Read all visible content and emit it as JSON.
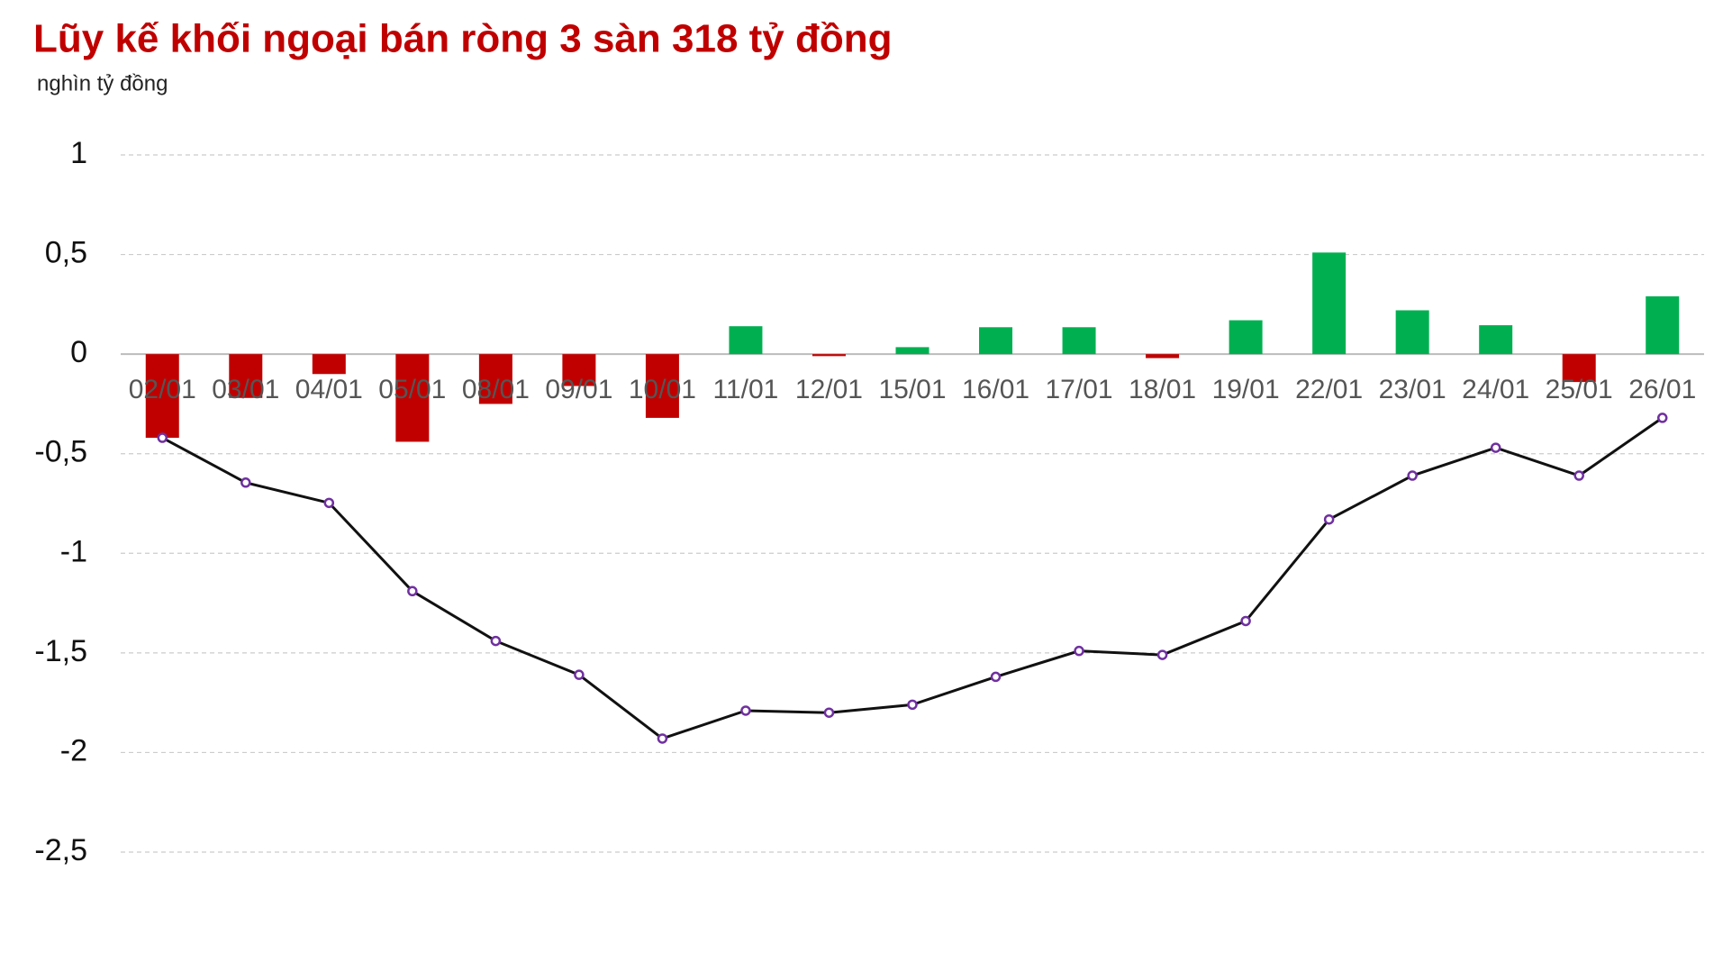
{
  "chart_data": {
    "type": "bar-line",
    "title": "Lũy kế khối ngoại bán ròng 3 sàn 318 tỷ đồng",
    "subtitle": "nghìn tỷ đồng",
    "categories": [
      "02/01",
      "03/01",
      "04/01",
      "05/01",
      "08/01",
      "09/01",
      "10/01",
      "11/01",
      "12/01",
      "15/01",
      "16/01",
      "17/01",
      "18/01",
      "19/01",
      "22/01",
      "23/01",
      "24/01",
      "25/01",
      "26/01"
    ],
    "series": [
      {
        "type": "bar",
        "positive_color": "#00b050",
        "negative_color": "#c00000",
        "values": [
          -0.42,
          -0.22,
          -0.1,
          -0.44,
          -0.25,
          -0.16,
          -0.32,
          0.14,
          -0.01,
          0.035,
          0.135,
          0.135,
          -0.02,
          0.17,
          0.51,
          0.22,
          0.145,
          -0.14,
          0.29
        ]
      },
      {
        "type": "line",
        "color": "#111111",
        "marker_color": "#7030a0",
        "values": [
          -0.42,
          -0.645,
          -0.747,
          -1.19,
          -1.44,
          -1.61,
          -1.93,
          -1.79,
          -1.8,
          -1.76,
          -1.62,
          -1.49,
          -1.51,
          -1.34,
          -0.83,
          -0.61,
          -0.47,
          -0.61,
          -0.32
        ]
      }
    ],
    "ylim": [
      -2.5,
      1
    ],
    "yticks": [
      1,
      {
        "value": 0.5,
        "label": "0,5"
      },
      0,
      {
        "value": -0.5,
        "label": "-0,5"
      },
      -1,
      {
        "value": -1.5,
        "label": "-1,5"
      },
      -2,
      {
        "value": -2.5,
        "label": "-2,5"
      }
    ],
    "grid": true
  }
}
